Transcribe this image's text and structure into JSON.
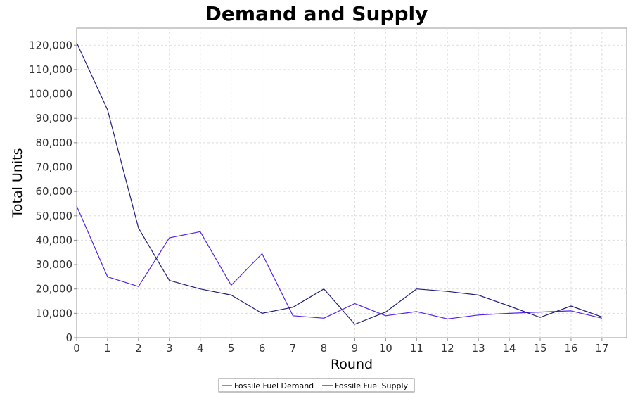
{
  "chart_data": {
    "type": "line",
    "title": "Demand and Supply",
    "xlabel": "Round",
    "ylabel": "Total Units",
    "x": [
      0,
      1,
      2,
      3,
      4,
      5,
      6,
      7,
      8,
      9,
      10,
      11,
      12,
      13,
      14,
      15,
      16,
      17
    ],
    "xlim": [
      0,
      17.8
    ],
    "ylim": [
      0,
      127000
    ],
    "yticks": [
      0,
      10000,
      20000,
      30000,
      40000,
      50000,
      60000,
      70000,
      80000,
      90000,
      100000,
      110000,
      120000
    ],
    "ytick_labels": [
      "0",
      "10,000",
      "20,000",
      "30,000",
      "40,000",
      "50,000",
      "60,000",
      "70,000",
      "80,000",
      "90,000",
      "100,000",
      "110,000",
      "120,000"
    ],
    "grid": true,
    "legend_position": "bottom",
    "series": [
      {
        "name": "Fossile Fuel Demand",
        "color": "#5522ee",
        "values": [
          54000,
          25000,
          21000,
          41000,
          43500,
          21500,
          34500,
          9000,
          8000,
          14000,
          9000,
          10700,
          7700,
          9300,
          10000,
          10500,
          11000,
          8000
        ]
      },
      {
        "name": "Fossile Fuel Supply",
        "color": "#20207a",
        "values": [
          121000,
          93500,
          45000,
          23500,
          20000,
          17500,
          10000,
          12500,
          20000,
          5500,
          10500,
          20000,
          19000,
          17500,
          13000,
          8300,
          13000,
          8500
        ]
      }
    ]
  }
}
